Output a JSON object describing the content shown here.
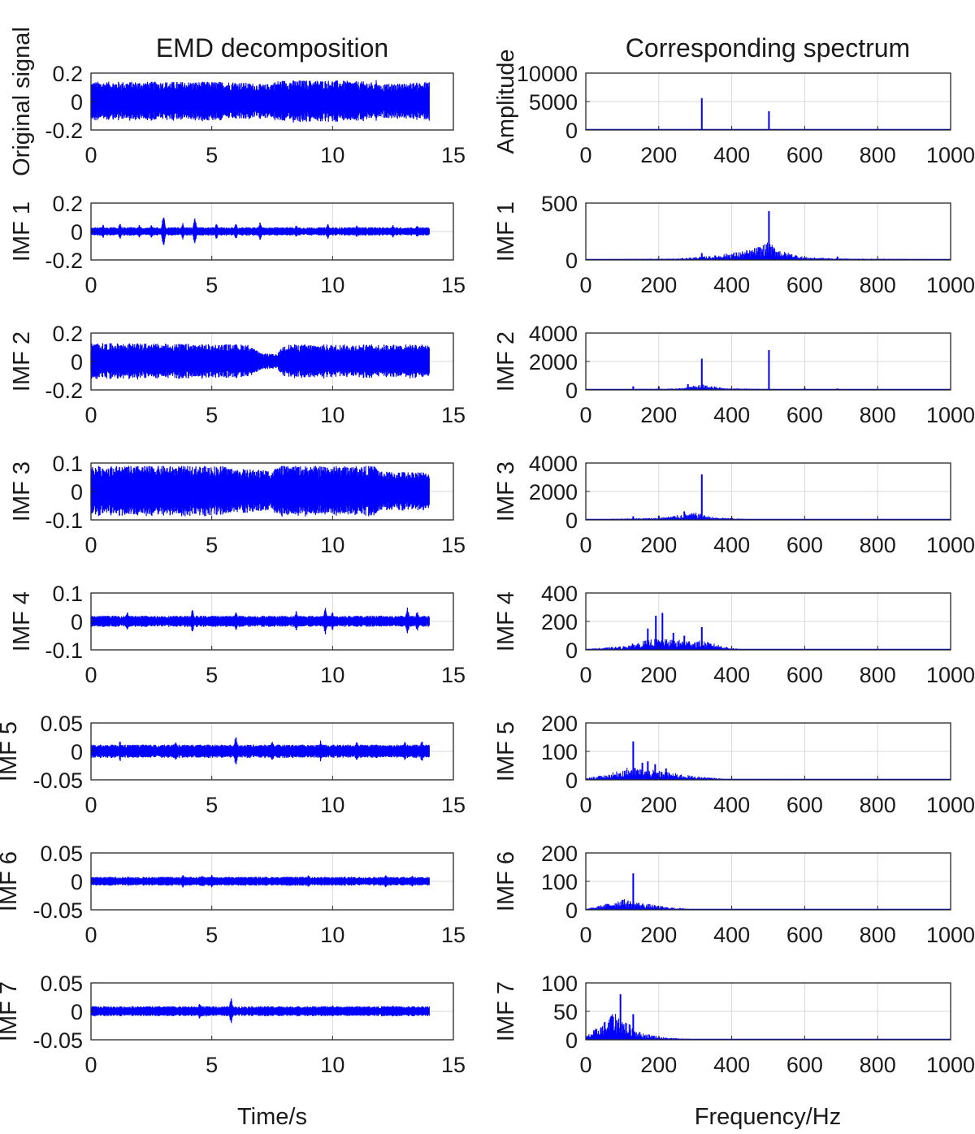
{
  "figure": {
    "left_title": "EMD decomposition",
    "right_title": "Corresponding spectrum",
    "left_xlabel": "Time/s",
    "right_xlabel": "Frequency/Hz"
  },
  "colors": {
    "signal": "#0000ff",
    "grid": "#d9d9d9",
    "axes": "#262626"
  },
  "chart_data": [
    {
      "type": "line",
      "panel": "time",
      "ylabel": "Original signal",
      "xlim": [
        0,
        15
      ],
      "ylim": [
        -0.2,
        0.2
      ],
      "xticks": [
        "0",
        "5",
        "10",
        "15"
      ],
      "yticks": [
        "-0.2",
        "0",
        "0.2"
      ],
      "grid": false,
      "x_range": [
        0,
        14
      ],
      "envelope": [
        [
          0,
          0.14
        ],
        [
          2,
          0.14
        ],
        [
          4,
          0.14
        ],
        [
          6,
          0.14
        ],
        [
          7.2,
          0.12
        ],
        [
          7.8,
          0.15
        ],
        [
          10,
          0.15
        ],
        [
          11.5,
          0.14
        ],
        [
          12,
          0.12
        ],
        [
          14,
          0.14
        ]
      ],
      "bursts": [
        [
          11.8,
          0.16
        ]
      ]
    },
    {
      "type": "line",
      "panel": "spectrum",
      "ylabel": "Amplitude",
      "xlim": [
        0,
        1000
      ],
      "ylim": [
        0,
        10000
      ],
      "xticks": [
        "0",
        "200",
        "400",
        "600",
        "800",
        "1000"
      ],
      "yticks": [
        "0",
        "5000",
        "10000"
      ],
      "grid": true,
      "peaks": [
        [
          318,
          5600
        ],
        [
          502,
          3300
        ],
        [
          650,
          60
        ]
      ],
      "floor": [
        [
          0,
          20
        ],
        [
          1000,
          20
        ]
      ]
    },
    {
      "type": "line",
      "panel": "time",
      "ylabel": "IMF 1",
      "xlim": [
        0,
        15
      ],
      "ylim": [
        -0.2,
        0.2
      ],
      "xticks": [
        "0",
        "5",
        "10",
        "15"
      ],
      "yticks": [
        "-0.2",
        "0",
        "0.2"
      ],
      "grid": true,
      "x_range": [
        0,
        14
      ],
      "envelope": [
        [
          0,
          0.03
        ],
        [
          14,
          0.03
        ]
      ],
      "bursts": [
        [
          0.5,
          0.05
        ],
        [
          1.2,
          0.06
        ],
        [
          2.0,
          0.05
        ],
        [
          2.5,
          0.05
        ],
        [
          3.0,
          0.12
        ],
        [
          3.8,
          0.06
        ],
        [
          4.3,
          0.11
        ],
        [
          5.2,
          0.06
        ],
        [
          6.0,
          0.06
        ],
        [
          7.0,
          0.07
        ],
        [
          8.5,
          0.05
        ],
        [
          9.8,
          0.06
        ],
        [
          11.0,
          0.05
        ],
        [
          12.5,
          0.05
        ],
        [
          13.5,
          0.05
        ]
      ]
    },
    {
      "type": "line",
      "panel": "spectrum",
      "ylabel": "IMF 1",
      "xlim": [
        0,
        1000
      ],
      "ylim": [
        0,
        500
      ],
      "xticks": [
        "0",
        "200",
        "400",
        "600",
        "800",
        "1000"
      ],
      "yticks": [
        "0",
        "500"
      ],
      "grid": true,
      "peaks": [
        [
          318,
          60
        ],
        [
          502,
          430
        ],
        [
          690,
          30
        ]
      ],
      "floor": [
        [
          0,
          5
        ],
        [
          250,
          10
        ],
        [
          350,
          30
        ],
        [
          450,
          70
        ],
        [
          500,
          120
        ],
        [
          540,
          60
        ],
        [
          600,
          20
        ],
        [
          700,
          10
        ],
        [
          1000,
          5
        ]
      ]
    },
    {
      "type": "line",
      "panel": "time",
      "ylabel": "IMF 2",
      "xlim": [
        0,
        15
      ],
      "ylim": [
        -0.2,
        0.2
      ],
      "xticks": [
        "0",
        "5",
        "10",
        "15"
      ],
      "yticks": [
        "-0.2",
        "0",
        "0.2"
      ],
      "grid": true,
      "x_range": [
        0,
        14
      ],
      "envelope": [
        [
          0,
          0.13
        ],
        [
          6.5,
          0.12
        ],
        [
          7.0,
          0.06
        ],
        [
          7.7,
          0.05
        ],
        [
          8.0,
          0.12
        ],
        [
          14,
          0.12
        ]
      ],
      "bursts": []
    },
    {
      "type": "line",
      "panel": "spectrum",
      "ylabel": "IMF 2",
      "xlim": [
        0,
        1000
      ],
      "ylim": [
        0,
        4000
      ],
      "xticks": [
        "0",
        "200",
        "400",
        "600",
        "800",
        "1000"
      ],
      "yticks": [
        "0",
        "2000",
        "4000"
      ],
      "grid": true,
      "peaks": [
        [
          318,
          2200
        ],
        [
          502,
          2800
        ],
        [
          130,
          250
        ],
        [
          200,
          220
        ],
        [
          280,
          400
        ],
        [
          600,
          150
        ],
        [
          690,
          100
        ]
      ],
      "floor": [
        [
          0,
          20
        ],
        [
          250,
          80
        ],
        [
          320,
          300
        ],
        [
          380,
          100
        ],
        [
          550,
          40
        ],
        [
          1000,
          10
        ]
      ]
    },
    {
      "type": "line",
      "panel": "time",
      "ylabel": "IMF 3",
      "xlim": [
        0,
        15
      ],
      "ylim": [
        -0.1,
        0.1
      ],
      "xticks": [
        "0",
        "5",
        "10",
        "15"
      ],
      "yticks": [
        "-0.1",
        "0",
        "0.1"
      ],
      "grid": true,
      "x_range": [
        0,
        14
      ],
      "envelope": [
        [
          0,
          0.09
        ],
        [
          5.5,
          0.09
        ],
        [
          6.0,
          0.08
        ],
        [
          7.5,
          0.075
        ],
        [
          7.8,
          0.09
        ],
        [
          11.8,
          0.09
        ],
        [
          12.0,
          0.07
        ],
        [
          14,
          0.07
        ]
      ],
      "bursts": []
    },
    {
      "type": "line",
      "panel": "spectrum",
      "ylabel": "IMF 3",
      "xlim": [
        0,
        1000
      ],
      "ylim": [
        0,
        4000
      ],
      "xticks": [
        "0",
        "200",
        "400",
        "600",
        "800",
        "1000"
      ],
      "yticks": [
        "0",
        "2000",
        "4000"
      ],
      "grid": true,
      "peaks": [
        [
          318,
          3200
        ],
        [
          270,
          600
        ],
        [
          200,
          300
        ],
        [
          130,
          250
        ],
        [
          400,
          150
        ]
      ],
      "floor": [
        [
          0,
          30
        ],
        [
          200,
          120
        ],
        [
          300,
          400
        ],
        [
          350,
          150
        ],
        [
          450,
          40
        ],
        [
          1000,
          10
        ]
      ]
    },
    {
      "type": "line",
      "panel": "time",
      "ylabel": "IMF 4",
      "xlim": [
        0,
        15
      ],
      "ylim": [
        -0.1,
        0.1
      ],
      "xticks": [
        "0",
        "5",
        "10",
        "15"
      ],
      "yticks": [
        "-0.1",
        "0",
        "0.1"
      ],
      "grid": true,
      "x_range": [
        0,
        14
      ],
      "envelope": [
        [
          0,
          0.02
        ],
        [
          14,
          0.02
        ]
      ],
      "bursts": [
        [
          1.5,
          0.04
        ],
        [
          4.2,
          0.045
        ],
        [
          6.0,
          0.04
        ],
        [
          8.5,
          0.04
        ],
        [
          9.7,
          0.05
        ],
        [
          10.0,
          0.035
        ],
        [
          12.0,
          0.025
        ],
        [
          13.1,
          0.05
        ],
        [
          13.5,
          0.04
        ]
      ]
    },
    {
      "type": "line",
      "panel": "spectrum",
      "ylabel": "IMF 4",
      "xlim": [
        0,
        1000
      ],
      "ylim": [
        0,
        400
      ],
      "xticks": [
        "0",
        "200",
        "400",
        "600",
        "800",
        "1000"
      ],
      "yticks": [
        "0",
        "200",
        "400"
      ],
      "grid": true,
      "peaks": [
        [
          192,
          240
        ],
        [
          210,
          260
        ],
        [
          240,
          120
        ],
        [
          270,
          100
        ],
        [
          318,
          160
        ],
        [
          170,
          150
        ]
      ],
      "floor": [
        [
          0,
          5
        ],
        [
          100,
          20
        ],
        [
          180,
          60
        ],
        [
          250,
          55
        ],
        [
          320,
          50
        ],
        [
          400,
          10
        ],
        [
          450,
          3
        ],
        [
          1000,
          2
        ]
      ]
    },
    {
      "type": "line",
      "panel": "time",
      "ylabel": "IMF 5",
      "xlim": [
        0,
        15
      ],
      "ylim": [
        -0.05,
        0.05
      ],
      "xticks": [
        "0",
        "5",
        "10",
        "15"
      ],
      "yticks": [
        "-0.05",
        "0",
        "0.05"
      ],
      "grid": true,
      "x_range": [
        0,
        14
      ],
      "envelope": [
        [
          0,
          0.012
        ],
        [
          14,
          0.012
        ]
      ],
      "bursts": [
        [
          1.2,
          0.02
        ],
        [
          3.5,
          0.02
        ],
        [
          6.0,
          0.03
        ],
        [
          7.5,
          0.02
        ],
        [
          9.5,
          0.02
        ],
        [
          11.0,
          0.018
        ],
        [
          13.0,
          0.02
        ],
        [
          13.7,
          0.022
        ]
      ]
    },
    {
      "type": "line",
      "panel": "spectrum",
      "ylabel": "IMF 5",
      "xlim": [
        0,
        1000
      ],
      "ylim": [
        0,
        200
      ],
      "xticks": [
        "0",
        "200",
        "400",
        "600",
        "800",
        "1000"
      ],
      "yticks": [
        "0",
        "100",
        "200"
      ],
      "grid": true,
      "peaks": [
        [
          130,
          135
        ],
        [
          155,
          60
        ],
        [
          170,
          65
        ],
        [
          190,
          55
        ],
        [
          220,
          40
        ]
      ],
      "floor": [
        [
          0,
          5
        ],
        [
          60,
          15
        ],
        [
          120,
          35
        ],
        [
          200,
          25
        ],
        [
          300,
          10
        ],
        [
          380,
          3
        ],
        [
          1000,
          1
        ]
      ]
    },
    {
      "type": "line",
      "panel": "time",
      "ylabel": "IMF 6",
      "xlim": [
        0,
        15
      ],
      "ylim": [
        -0.05,
        0.05
      ],
      "xticks": [
        "0",
        "5",
        "10",
        "15"
      ],
      "yticks": [
        "-0.05",
        "0",
        "0.05"
      ],
      "grid": true,
      "x_range": [
        0,
        14
      ],
      "envelope": [
        [
          0,
          0.008
        ],
        [
          14,
          0.008
        ]
      ],
      "bursts": [
        [
          3.8,
          0.014
        ],
        [
          4.6,
          0.012
        ],
        [
          5.0,
          0.013
        ],
        [
          9.0,
          0.012
        ],
        [
          12.2,
          0.012
        ],
        [
          13.3,
          0.012
        ]
      ]
    },
    {
      "type": "line",
      "panel": "spectrum",
      "ylabel": "IMF 6",
      "xlim": [
        0,
        1000
      ],
      "ylim": [
        0,
        200
      ],
      "xticks": [
        "0",
        "200",
        "400",
        "600",
        "800",
        "1000"
      ],
      "yticks": [
        "0",
        "100",
        "200"
      ],
      "grid": true,
      "peaks": [
        [
          130,
          128
        ],
        [
          100,
          35
        ]
      ],
      "floor": [
        [
          0,
          2
        ],
        [
          50,
          15
        ],
        [
          100,
          30
        ],
        [
          150,
          20
        ],
        [
          220,
          8
        ],
        [
          300,
          2
        ],
        [
          1000,
          1
        ]
      ]
    },
    {
      "type": "line",
      "panel": "time",
      "ylabel": "IMF 7",
      "xlim": [
        0,
        15
      ],
      "ylim": [
        -0.05,
        0.05
      ],
      "xticks": [
        "0",
        "5",
        "10",
        "15"
      ],
      "yticks": [
        "-0.05",
        "0",
        "0.05"
      ],
      "grid": true,
      "x_range": [
        0,
        14
      ],
      "envelope": [
        [
          0,
          0.009
        ],
        [
          14,
          0.009
        ]
      ],
      "bursts": [
        [
          4.5,
          0.015
        ],
        [
          5.8,
          0.025
        ],
        [
          10.0,
          0.012
        ],
        [
          12.5,
          0.012
        ]
      ]
    },
    {
      "type": "line",
      "panel": "spectrum",
      "ylabel": "IMF 7",
      "xlim": [
        0,
        1000
      ],
      "ylim": [
        0,
        100
      ],
      "xticks": [
        "0",
        "200",
        "400",
        "600",
        "800",
        "1000"
      ],
      "yticks": [
        "0",
        "50",
        "100"
      ],
      "grid": true,
      "peaks": [
        [
          95,
          80
        ],
        [
          130,
          45
        ],
        [
          70,
          42
        ]
      ],
      "floor": [
        [
          0,
          5
        ],
        [
          40,
          20
        ],
        [
          80,
          38
        ],
        [
          110,
          25
        ],
        [
          150,
          10
        ],
        [
          220,
          3
        ],
        [
          300,
          1
        ],
        [
          1000,
          0
        ]
      ]
    }
  ]
}
